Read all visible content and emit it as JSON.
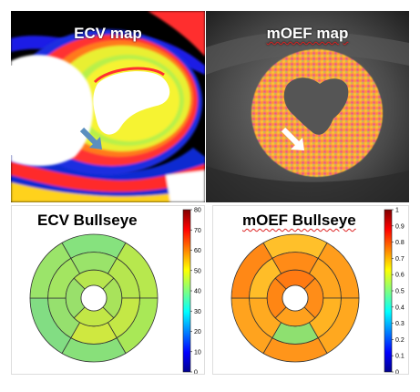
{
  "ecv_map": {
    "title": "ECV map"
  },
  "moef_map": {
    "title": "mOEF map"
  },
  "ecv_bullseye": {
    "title": "ECV Bullseye",
    "colorbar_ticks": [
      "80",
      "70",
      "60",
      "50",
      "40",
      "30",
      "20",
      "10",
      "0"
    ],
    "colors": {
      "outer": [
        "#86e27e",
        "#b7e84e",
        "#a9e857",
        "#88e07a",
        "#82dd83",
        "#9be46a"
      ],
      "middle": [
        "#9ae36a",
        "#b6e64f",
        "#c4e846",
        "#cfe840",
        "#96e06e",
        "#a3e561"
      ],
      "inner": [
        "#b8e64e",
        "#a8e35b",
        "#c2e746",
        "#99e06b"
      ],
      "apex": "#ffffff"
    }
  },
  "moef_bullseye": {
    "title": "mOEF Bullseye",
    "colorbar_ticks": [
      "1",
      "0.9",
      "0.8",
      "0.7",
      "0.6",
      "0.5",
      "0.4",
      "0.3",
      "0.2",
      "0.1",
      "0"
    ],
    "colors": {
      "outer": [
        "#ffc02a",
        "#ff9d1c",
        "#ffa81f",
        "#ff951a",
        "#ffa31e",
        "#ff8816"
      ],
      "middle": [
        "#ff8b17",
        "#ffa61f",
        "#ffb322",
        "#8ee070",
        "#ffaa20",
        "#ffbd28"
      ],
      "inner": [
        "#ff7a12",
        "#ff8d18",
        "#ffa11d",
        "#ff8614"
      ],
      "apex": "#ffffff"
    }
  }
}
